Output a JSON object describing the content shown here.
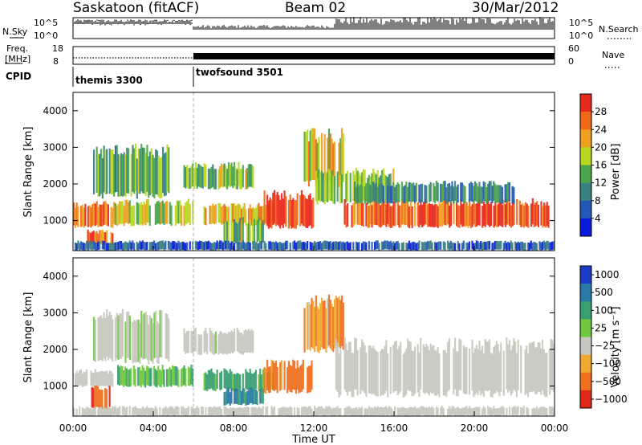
{
  "header": {
    "station": "Saskatoon (fitACF)",
    "beam": "Beam 02",
    "date": "30/Mar/2012"
  },
  "top_panels": {
    "nsky_label": "N.Sky",
    "nsky_ticks": [
      "10^5",
      "10^0"
    ],
    "nsearch_label": "N.Search",
    "nsearch_ticks": [
      "10^5",
      "10^0"
    ],
    "freq_label_line1": "Freq.",
    "freq_label_line2": "[MHz]",
    "freq_ticks": [
      "18",
      "8"
    ],
    "nave_label": "Nave",
    "nave_ticks": [
      "60",
      "0"
    ],
    "cpid_label": "CPID",
    "cpid_segments": [
      {
        "name": "themis 3300",
        "start_hour": 0,
        "end_hour": 6
      },
      {
        "name": "twofsound 3501",
        "start_hour": 6,
        "end_hour": 24
      }
    ]
  },
  "chart_data": [
    {
      "type": "heatmap",
      "panel": "power",
      "ylabel": "Slant Range [km]",
      "ylim": [
        180,
        4500
      ],
      "yticks": [
        "1000",
        "2000",
        "3000",
        "4000"
      ],
      "xlim_hours": [
        0,
        24
      ],
      "colorbar": {
        "label": "Power [dB]",
        "ticks": [
          "4",
          "8",
          "12",
          "16",
          "20",
          "24",
          "28"
        ],
        "range": [
          0,
          30
        ],
        "colors": [
          "#0b1adc",
          "#2458b8",
          "#3a8080",
          "#4aa44a",
          "#b8d820",
          "#f0a020",
          "#f06818",
          "#e8281c"
        ]
      },
      "echo_regions": [
        {
          "t": [
            0.0,
            2.0
          ],
          "r": [
            850,
            1450
          ],
          "level": 24
        },
        {
          "t": [
            0.7,
            2.0
          ],
          "r": [
            350,
            700
          ],
          "level": 26
        },
        {
          "t": [
            1.0,
            4.8
          ],
          "r": [
            1700,
            2900
          ],
          "level": 12
        },
        {
          "t": [
            2.0,
            6.0
          ],
          "r": [
            900,
            1500
          ],
          "level": 18
        },
        {
          "t": [
            5.5,
            9.0
          ],
          "r": [
            1900,
            2500
          ],
          "level": 14
        },
        {
          "t": [
            6.5,
            10.0
          ],
          "r": [
            900,
            1400
          ],
          "level": 20
        },
        {
          "t": [
            7.5,
            9.5
          ],
          "r": [
            400,
            1000
          ],
          "level": 14
        },
        {
          "t": [
            9.5,
            12.0
          ],
          "r": [
            850,
            1700
          ],
          "level": 28
        },
        {
          "t": [
            11.5,
            13.5
          ],
          "r": [
            2000,
            3300
          ],
          "level": 18
        },
        {
          "t": [
            12.0,
            16.0
          ],
          "r": [
            1500,
            2300
          ],
          "level": 14
        },
        {
          "t": [
            13.5,
            23.8
          ],
          "r": [
            850,
            1500
          ],
          "level": 26
        },
        {
          "t": [
            14.0,
            22.0
          ],
          "r": [
            1500,
            2000
          ],
          "level": 10
        },
        {
          "t": [
            0.0,
            24.0
          ],
          "r": [
            200,
            420
          ],
          "level": 6
        }
      ]
    },
    {
      "type": "heatmap",
      "panel": "velocity",
      "ylabel": "Slant Range [km]",
      "ylim": [
        180,
        4500
      ],
      "yticks": [
        "1000",
        "2000",
        "3000",
        "4000"
      ],
      "xlim_hours": [
        0,
        24
      ],
      "xticks": [
        "00:00",
        "04:00",
        "08:00",
        "12:00",
        "16:00",
        "20:00",
        "00:00"
      ],
      "xlabel": "Time UT",
      "colorbar": {
        "label": "Velocity [m s⁻¹]",
        "ticks": [
          "1000",
          "500",
          "100",
          "25",
          "−25",
          "−100",
          "−500",
          "−1000"
        ],
        "range": [
          -1000,
          1000
        ],
        "colors": [
          "#1c3cc8",
          "#2a78a8",
          "#38a070",
          "#70c840",
          "#c8c8c0",
          "#f0a830",
          "#f07020",
          "#e02818"
        ]
      },
      "echo_regions": [
        {
          "t": [
            0.0,
            2.0
          ],
          "r": [
            1000,
            1400
          ],
          "v": 0
        },
        {
          "t": [
            0.9,
            2.0
          ],
          "r": [
            400,
            950
          ],
          "v": -400
        },
        {
          "t": [
            1.0,
            4.8
          ],
          "r": [
            1700,
            2900
          ],
          "v": 10
        },
        {
          "t": [
            2.2,
            6.0
          ],
          "r": [
            1000,
            1500
          ],
          "v": 80
        },
        {
          "t": [
            5.5,
            9.0
          ],
          "r": [
            1900,
            2500
          ],
          "v": 5
        },
        {
          "t": [
            6.5,
            10.0
          ],
          "r": [
            900,
            1400
          ],
          "v": 200
        },
        {
          "t": [
            7.5,
            9.5
          ],
          "r": [
            500,
            900
          ],
          "v": 600
        },
        {
          "t": [
            9.5,
            12.0
          ],
          "r": [
            850,
            1600
          ],
          "v": -150
        },
        {
          "t": [
            11.5,
            13.5
          ],
          "r": [
            2000,
            3300
          ],
          "v": -80
        },
        {
          "t": [
            13.0,
            24.0
          ],
          "r": [
            800,
            2100
          ],
          "v": 0
        },
        {
          "t": [
            0.0,
            24.0
          ],
          "r": [
            200,
            420
          ],
          "v": 0
        }
      ]
    }
  ]
}
